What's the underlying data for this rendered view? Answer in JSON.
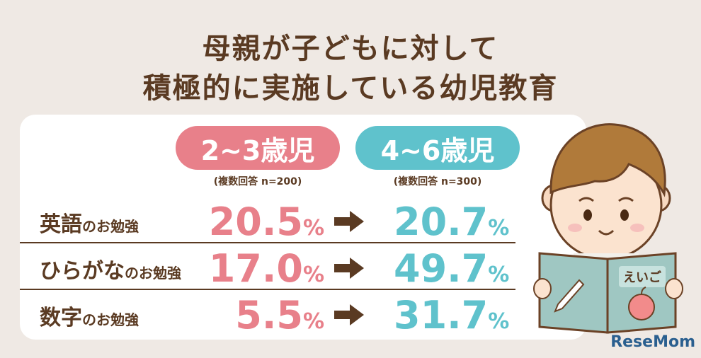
{
  "title": {
    "line1": "母親が子どもに対して",
    "line2": "積極的に実施している幼児教育"
  },
  "groups": [
    {
      "label": "2~3歳児",
      "note": "(複数回答 n=200)"
    },
    {
      "label": "4~6歳児",
      "note": "(複数回答 n=300)"
    }
  ],
  "rows": [
    {
      "subject": "英語",
      "suffix": "のお勉強",
      "v1": "20.5",
      "v2": "20.7"
    },
    {
      "subject": "ひらがな",
      "suffix": "のお勉強",
      "v1": "17.0",
      "v2": "49.7"
    },
    {
      "subject": "数字",
      "suffix": "のお勉強",
      "v1": "5.5",
      "v2": "31.7"
    }
  ],
  "unit": "%",
  "book_label": "えいご",
  "brand": "ReseMom",
  "colors": {
    "background": "#efe9e4",
    "text": "#5a3a22",
    "pink": "#e8808a",
    "teal": "#5fc2cc"
  }
}
